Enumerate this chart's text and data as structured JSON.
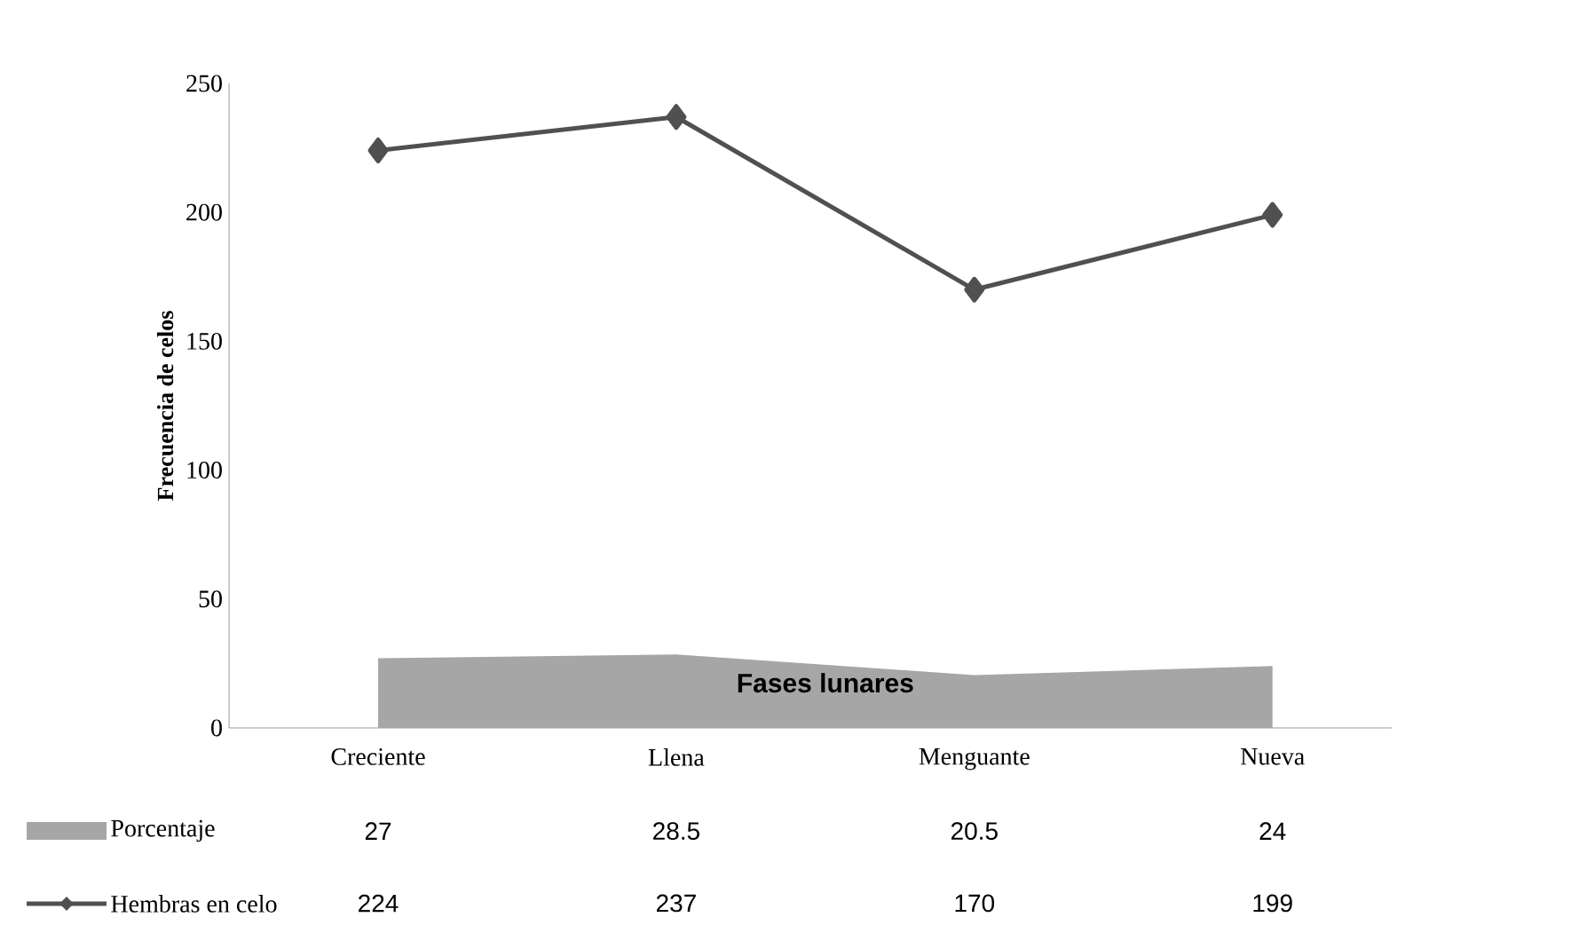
{
  "chart_data": {
    "type": "line",
    "xlabel": "Fases lunares",
    "ylabel": "Frecuencia de celos",
    "categories": [
      "Creciente",
      "Llena",
      "Menguante",
      "Nueva"
    ],
    "series": [
      {
        "name": "Porcentaje",
        "type": "area",
        "color": "#a6a6a6",
        "values": [
          27,
          28.5,
          20.5,
          24
        ],
        "value_labels": [
          "27",
          "28.5",
          "20.5",
          "24"
        ]
      },
      {
        "name": "Hembras en celo",
        "color": "#505050",
        "marker": "diamond",
        "values": [
          224,
          237,
          170,
          199
        ],
        "value_labels": [
          "224",
          "237",
          "170",
          "199"
        ]
      }
    ],
    "ylim": [
      0,
      250
    ],
    "yticks": [
      0,
      50,
      100,
      150,
      200,
      250
    ],
    "grid": false,
    "legend": "bottom left",
    "data_labels": true
  }
}
